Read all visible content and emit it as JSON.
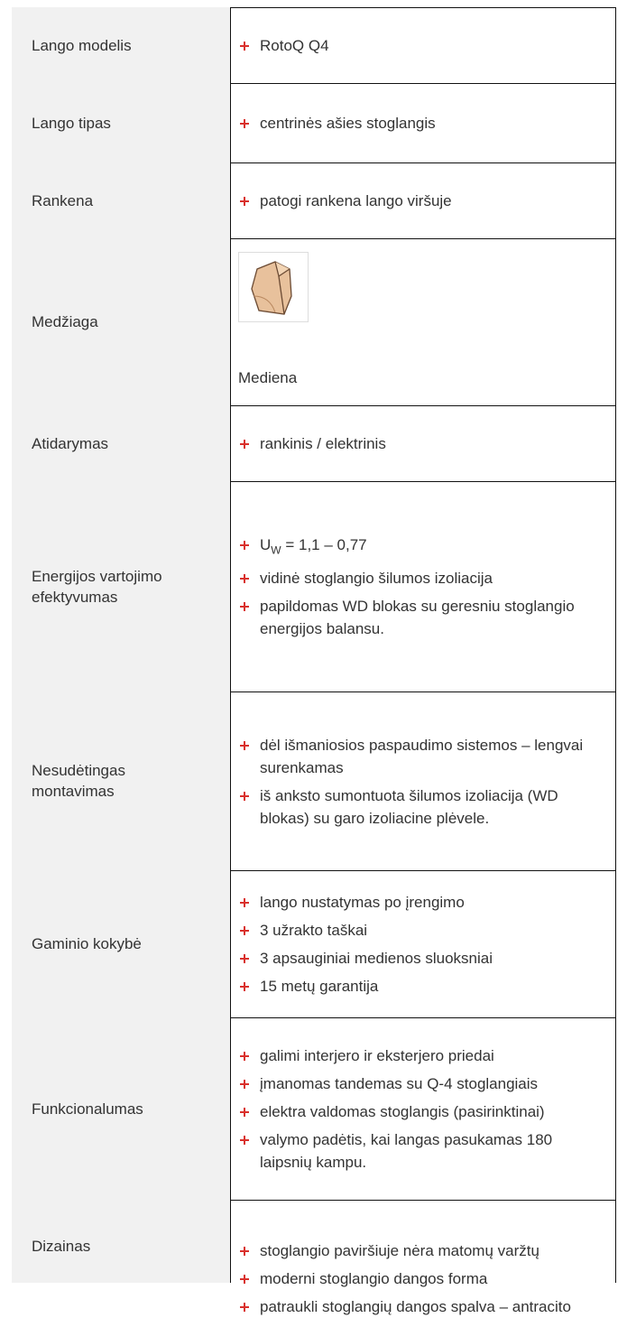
{
  "table": {
    "rows": [
      {
        "label": "Lango modelis",
        "items": [
          "RotoQ Q4"
        ]
      },
      {
        "label": "Lango tipas",
        "items": [
          "centrinės ašies stoglangis"
        ]
      },
      {
        "label": "Rankena",
        "items": [
          "patogi rankena lango viršuje"
        ]
      },
      {
        "label": "Medžiaga",
        "material": "Mediena"
      },
      {
        "label": "Atidarymas",
        "items": [
          "rankinis / elektrinis"
        ]
      },
      {
        "label": "Energijos vartojimo efektyvumas",
        "items": [
          {
            "base": "U",
            "sub": "W",
            "rest": "= 1,1 – 0,77"
          },
          "vidinė stoglangio šilumos izoliacija",
          "papildomas WD blokas su geresniu stoglangio energijos balansu."
        ]
      },
      {
        "label": "Nesudėtingas montavimas",
        "items": [
          "dėl išmaniosios paspaudimo sistemos – lengvai surenkamas",
          "iš anksto sumontuota šilumos izoliacija (WD blokas) su garo izoliacine plėvele."
        ]
      },
      {
        "label": "Gaminio kokybė",
        "items": [
          "lango nustatymas po įrengimo",
          "3 užrakto taškai",
          "3 apsauginiai medienos sluoksniai",
          "15 metų garantija"
        ]
      },
      {
        "label": "Funkcionalumas",
        "items": [
          "galimi interjero ir eksterjero priedai",
          "įmanomas tandemas su Q-4 stoglangiais",
          "elektra valdomas stoglangis (pasirinktinai)",
          "valymo padėtis, kai langas pasukamas 180 laipsnių kampu."
        ]
      },
      {
        "label": "Dizainas",
        "items": [
          "stoglangio paviršiuje nėra matomų varžtų",
          "moderni stoglangio dangos forma",
          "patraukli stoglangių dangos spalva – antracito"
        ]
      }
    ]
  }
}
